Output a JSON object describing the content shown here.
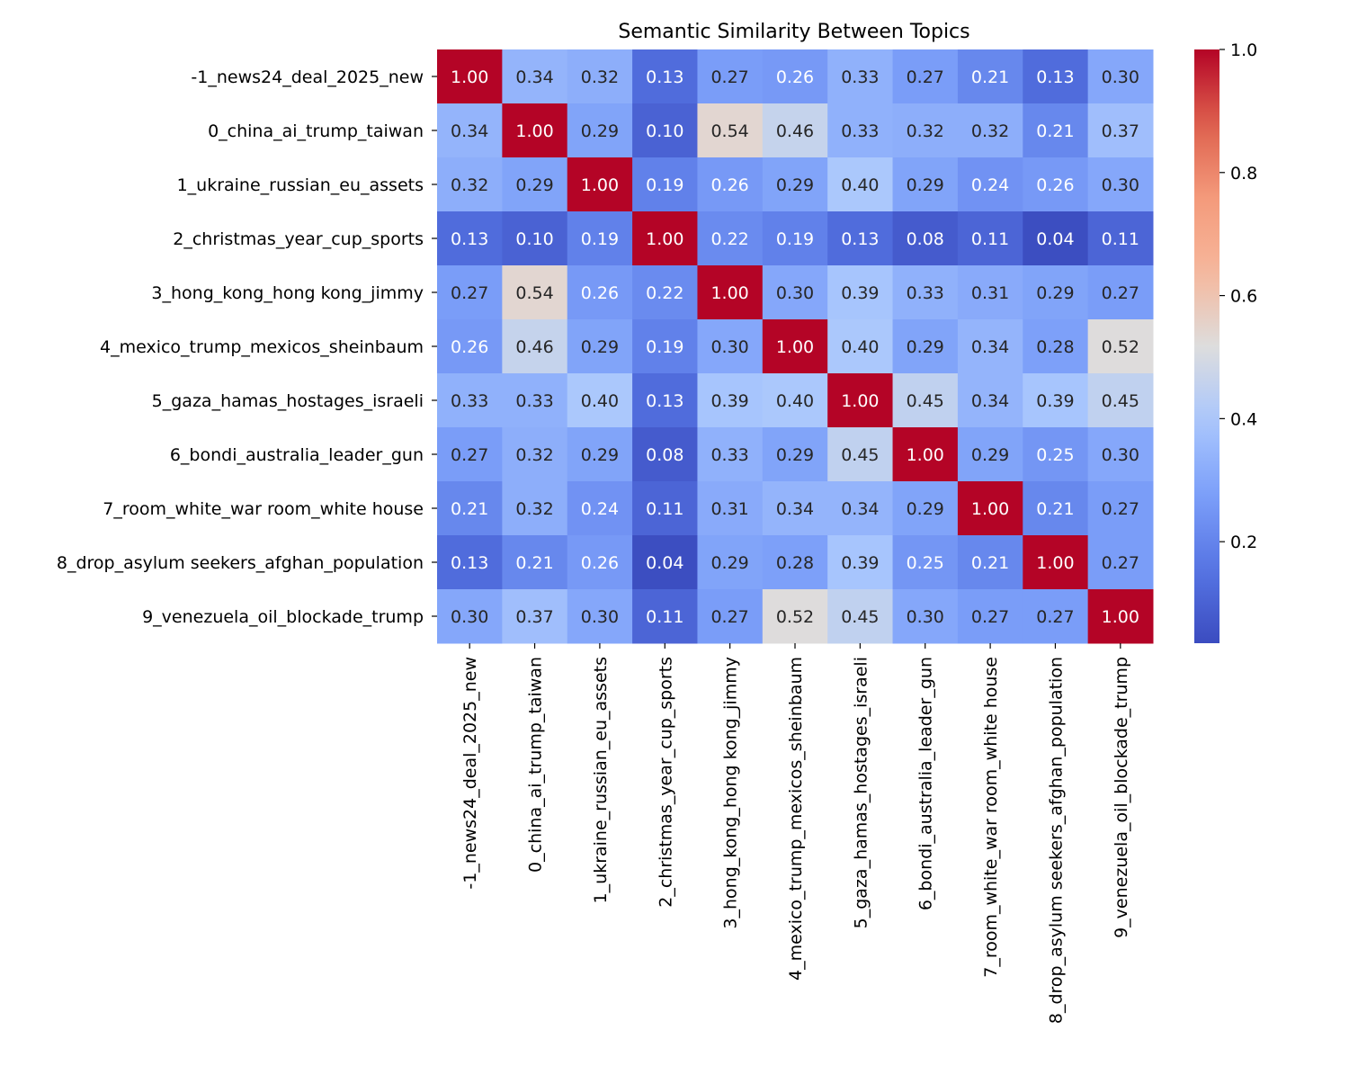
{
  "chart_data": {
    "type": "heatmap",
    "title": "Semantic Similarity Between Topics",
    "colormap": "coolwarm",
    "color_range": [
      0.035,
      1.0
    ],
    "colorbar_ticks": [
      "0.2",
      "0.4",
      "0.6",
      "0.8",
      "1.0"
    ],
    "colorbar_tick_values": [
      0.2,
      0.4,
      0.6,
      0.8,
      1.0
    ],
    "labels": [
      "-1_news24_deal_2025_new",
      "0_china_ai_trump_taiwan",
      "1_ukraine_russian_eu_assets",
      "2_christmas_year_cup_sports",
      "3_hong_kong_hong kong_jimmy",
      "4_mexico_trump_mexicos_sheinbaum",
      "5_gaza_hamas_hostages_israeli",
      "6_bondi_australia_leader_gun",
      "7_room_white_war room_white house",
      "8_drop_asylum seekers_afghan_population",
      "9_venezuela_oil_blockade_trump"
    ],
    "values": [
      [
        1.0,
        0.34,
        0.32,
        0.13,
        0.27,
        0.26,
        0.33,
        0.27,
        0.21,
        0.13,
        0.3
      ],
      [
        0.34,
        1.0,
        0.29,
        0.1,
        0.54,
        0.46,
        0.33,
        0.32,
        0.32,
        0.21,
        0.37
      ],
      [
        0.32,
        0.29,
        1.0,
        0.19,
        0.26,
        0.29,
        0.4,
        0.29,
        0.24,
        0.26,
        0.3
      ],
      [
        0.13,
        0.1,
        0.19,
        1.0,
        0.22,
        0.19,
        0.13,
        0.08,
        0.11,
        0.04,
        0.11
      ],
      [
        0.27,
        0.54,
        0.26,
        0.22,
        1.0,
        0.3,
        0.39,
        0.33,
        0.31,
        0.29,
        0.27
      ],
      [
        0.26,
        0.46,
        0.29,
        0.19,
        0.3,
        1.0,
        0.4,
        0.29,
        0.34,
        0.28,
        0.52
      ],
      [
        0.33,
        0.33,
        0.4,
        0.13,
        0.39,
        0.4,
        1.0,
        0.45,
        0.34,
        0.39,
        0.45
      ],
      [
        0.27,
        0.32,
        0.29,
        0.08,
        0.33,
        0.29,
        0.45,
        1.0,
        0.29,
        0.25,
        0.3
      ],
      [
        0.21,
        0.32,
        0.24,
        0.11,
        0.31,
        0.34,
        0.34,
        0.29,
        1.0,
        0.21,
        0.27
      ],
      [
        0.13,
        0.21,
        0.26,
        0.04,
        0.29,
        0.28,
        0.39,
        0.25,
        0.21,
        1.0,
        0.27
      ],
      [
        0.3,
        0.37,
        0.3,
        0.11,
        0.27,
        0.52,
        0.45,
        0.3,
        0.27,
        0.27,
        1.0
      ]
    ],
    "annotation_format": "0.00",
    "legend": "colorbar right"
  }
}
